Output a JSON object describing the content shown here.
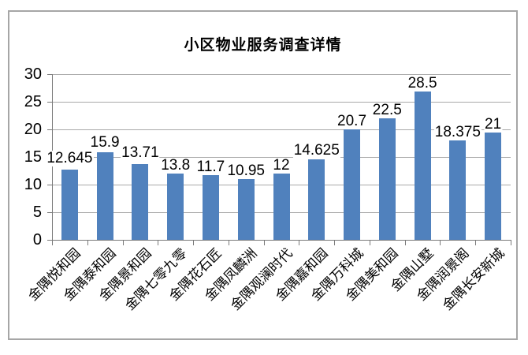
{
  "window": {
    "background": "#ffffff",
    "frame_border_color": "#a6a6a6"
  },
  "chart_data": {
    "type": "bar",
    "title": "小区物业服务调查详情",
    "categories": [
      "金隅悦和园",
      "金隅泰和园",
      "金隅景和园",
      "金隅七零九零",
      "金隅花石匠",
      "金隅凤麟洲",
      "金隅观澜时代",
      "金隅嘉和园",
      "金隅万科城",
      "金隅美和园",
      "金隅山墅",
      "金隅润景阁",
      "金隅长安新城"
    ],
    "values": [
      12.645,
      15.9,
      13.71,
      13.8,
      11.7,
      10.95,
      12,
      14.625,
      20.7,
      22.5,
      28.5,
      18.375,
      21
    ],
    "data_labels": [
      "12.645",
      "15.9",
      "13.71",
      "13.8",
      "11.7",
      "10.95",
      "12",
      "14.625",
      "20.7",
      "22.5",
      "28.5",
      "18.375",
      "21"
    ],
    "xlabel": "",
    "ylabel": "",
    "ylim": [
      0,
      30
    ],
    "yticks": [
      0,
      5,
      10,
      15,
      20,
      25,
      30
    ],
    "grid": true,
    "legend": false,
    "bar_color": "#5081bd",
    "gridline_color": "#a9a9a9",
    "axis_color": "#7a7a7a",
    "text_color": "#000000",
    "label_y_offsets": [
      -4,
      -2,
      -4,
      13,
      0,
      0,
      0,
      -1,
      5,
      3,
      11,
      3,
      11
    ]
  }
}
